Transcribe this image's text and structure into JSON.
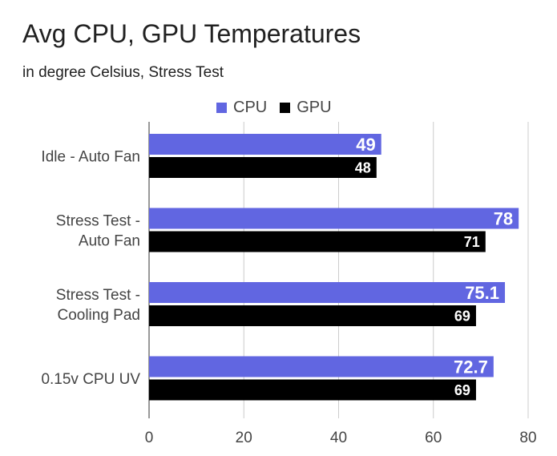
{
  "chart_data": {
    "type": "bar",
    "orientation": "horizontal",
    "title": "Avg CPU, GPU Temperatures",
    "subtitle": "in degree Celsius, Stress Test",
    "categories": [
      [
        "Idle - Auto Fan"
      ],
      [
        "Stress Test -",
        "Auto Fan"
      ],
      [
        "Stress Test -",
        "Cooling Pad"
      ],
      [
        "0.15v CPU UV"
      ]
    ],
    "series": [
      {
        "name": "CPU",
        "color": "#6166e1",
        "values": [
          49,
          78,
          75.1,
          72.7
        ],
        "labels": [
          "49",
          "78",
          "75.1",
          "72.7"
        ]
      },
      {
        "name": "GPU",
        "color": "#000000",
        "values": [
          48,
          71,
          69,
          69
        ],
        "labels": [
          "48",
          "71",
          "69",
          "69"
        ]
      }
    ],
    "xlim": [
      0,
      80
    ],
    "xticks": [
      "0",
      "20",
      "40",
      "60",
      "80"
    ],
    "grid": true,
    "legend_position": "top"
  }
}
